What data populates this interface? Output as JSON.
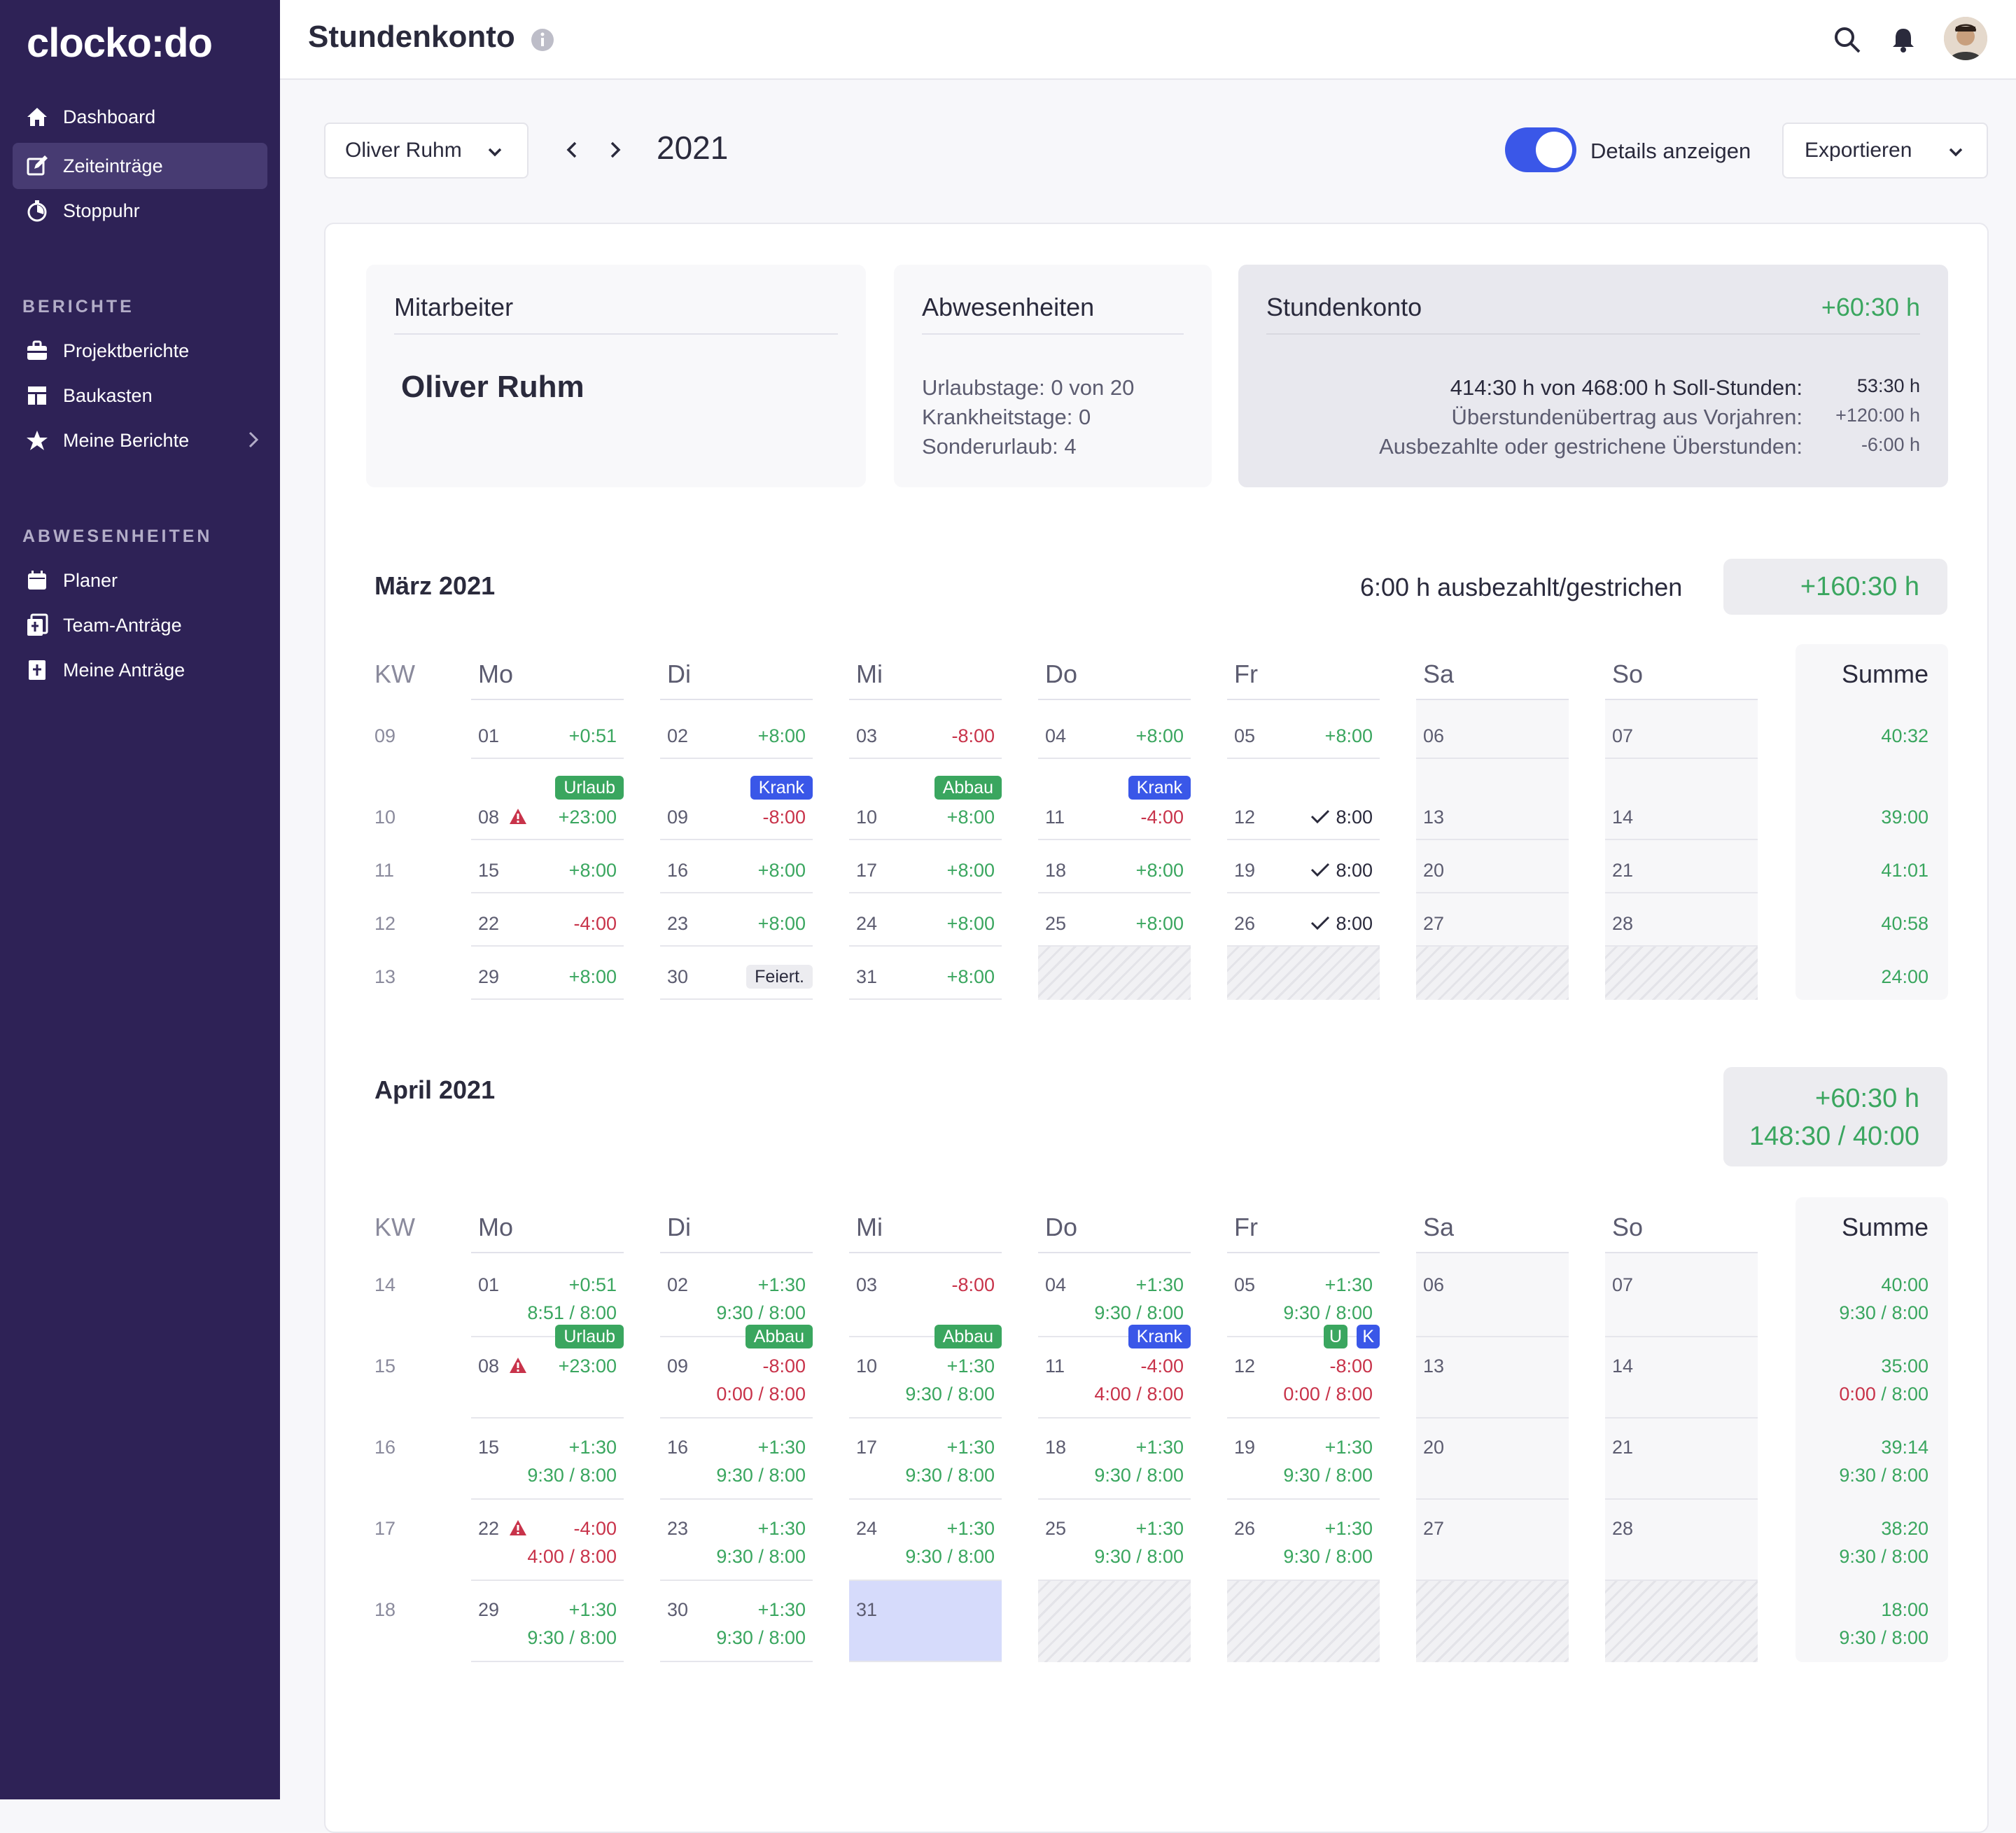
{
  "app": {
    "logo": "clocko:do"
  },
  "sidebar": {
    "items": [
      {
        "label": "Dashboard",
        "icon": "home-icon"
      },
      {
        "label": "Zeiteinträge",
        "icon": "edit-icon",
        "active": true
      },
      {
        "label": "Stoppuhr",
        "icon": "stopwatch-icon"
      }
    ],
    "reports_label": "BERICHTE",
    "reports": [
      {
        "label": "Projektberichte",
        "icon": "briefcase-icon"
      },
      {
        "label": "Baukasten",
        "icon": "layout-icon"
      },
      {
        "label": "Meine Berichte",
        "icon": "star-icon"
      }
    ],
    "absences_label": "ABWESENHEITEN",
    "absences": [
      {
        "label": "Planer",
        "icon": "calendar-icon"
      },
      {
        "label": "Team-Anträge",
        "icon": "team-request-icon"
      },
      {
        "label": "Meine Anträge",
        "icon": "my-request-icon"
      }
    ]
  },
  "header": {
    "title": "Stundenkonto"
  },
  "toolbar": {
    "user": "Oliver Ruhm",
    "year": "2021",
    "toggle_label": "Details anzeigen",
    "toggle_on": true,
    "export_label": "Exportieren"
  },
  "summary": {
    "employee": {
      "title": "Mitarbeiter",
      "name": "Oliver Ruhm"
    },
    "absences": {
      "title": "Abwesenheiten",
      "lines": [
        "Urlaubstage: 0 von 20",
        "Krankheitstage: 0",
        "Sonderurlaub: 4"
      ]
    },
    "account": {
      "title": "Stundenkonto",
      "total": "+60:30 h",
      "rows": [
        {
          "label": "414:30 h von 468:00 h Soll-Stunden:",
          "value": "53:30 h"
        },
        {
          "label": "Überstundenübertrag aus Vorjahren:",
          "value": "+120:00 h"
        },
        {
          "label": "Ausbezahlte oder gestrichene Überstunden:",
          "value": "-6:00 h"
        }
      ]
    }
  },
  "columns": [
    "KW",
    "Mo",
    "Di",
    "Mi",
    "Do",
    "Fr",
    "Sa",
    "So",
    "Summe"
  ],
  "march": {
    "title": "März 2021",
    "info": "6:00 h ausbezahlt/gestrichen",
    "total": "+160:30 h",
    "weeks": [
      {
        "kw": "09",
        "days": [
          {
            "d": "01",
            "v": "+0:51",
            "c": "green"
          },
          {
            "d": "02",
            "v": "+8:00",
            "c": "green"
          },
          {
            "d": "03",
            "v": "-8:00",
            "c": "red"
          },
          {
            "d": "04",
            "v": "+8:00",
            "c": "green"
          },
          {
            "d": "05",
            "v": "+8:00",
            "c": "green"
          },
          {
            "d": "06"
          },
          {
            "d": "07"
          }
        ],
        "sum": "40:32"
      },
      {
        "kw": "10",
        "days": [
          {
            "d": "08",
            "v": "+23:00",
            "c": "green",
            "badge": "Urlaub",
            "bc": "green",
            "warn": true
          },
          {
            "d": "09",
            "v": "-8:00",
            "c": "red",
            "badge": "Krank",
            "bc": "blue"
          },
          {
            "d": "10",
            "v": "+8:00",
            "c": "green",
            "badge": "Abbau",
            "bc": "green"
          },
          {
            "d": "11",
            "v": "-4:00",
            "c": "red",
            "badge": "Krank",
            "bc": "blue"
          },
          {
            "d": "12",
            "v": "8:00",
            "c": "dark",
            "check": true
          },
          {
            "d": "13"
          },
          {
            "d": "14"
          }
        ],
        "sum": "39:00"
      },
      {
        "kw": "11",
        "days": [
          {
            "d": "15",
            "v": "+8:00",
            "c": "green"
          },
          {
            "d": "16",
            "v": "+8:00",
            "c": "green"
          },
          {
            "d": "17",
            "v": "+8:00",
            "c": "green"
          },
          {
            "d": "18",
            "v": "+8:00",
            "c": "green"
          },
          {
            "d": "19",
            "v": "8:00",
            "c": "dark",
            "check": true
          },
          {
            "d": "20"
          },
          {
            "d": "21"
          }
        ],
        "sum": "41:01"
      },
      {
        "kw": "12",
        "days": [
          {
            "d": "22",
            "v": "-4:00",
            "c": "red"
          },
          {
            "d": "23",
            "v": "+8:00",
            "c": "green"
          },
          {
            "d": "24",
            "v": "+8:00",
            "c": "green"
          },
          {
            "d": "25",
            "v": "+8:00",
            "c": "green"
          },
          {
            "d": "26",
            "v": "8:00",
            "c": "dark",
            "check": true
          },
          {
            "d": "27"
          },
          {
            "d": "28"
          }
        ],
        "sum": "40:58"
      },
      {
        "kw": "13",
        "days": [
          {
            "d": "29",
            "v": "+8:00",
            "c": "green"
          },
          {
            "d": "30",
            "badge": "Feiert.",
            "bc": "gray"
          },
          {
            "d": "31",
            "v": "+8:00",
            "c": "green"
          },
          {
            "empty": true
          },
          {
            "empty": true
          },
          {
            "empty": true
          },
          {
            "empty": true
          }
        ],
        "sum": "24:00"
      }
    ]
  },
  "april": {
    "title": "April 2021",
    "total": "+60:30 h",
    "total2": "148:30 / 40:00",
    "weeks": [
      {
        "kw": "14",
        "days": [
          {
            "d": "01",
            "v": "+0:51",
            "c": "green",
            "w": "8:51",
            "wc": "green"
          },
          {
            "d": "02",
            "v": "+1:30",
            "c": "green",
            "w": "9:30",
            "wc": "green"
          },
          {
            "d": "03",
            "v": "-8:00",
            "c": "red"
          },
          {
            "d": "04",
            "v": "+1:30",
            "c": "green",
            "w": "9:30",
            "wc": "green"
          },
          {
            "d": "05",
            "v": "+1:30",
            "c": "green",
            "w": "9:30",
            "wc": "green"
          },
          {
            "d": "06"
          },
          {
            "d": "07"
          }
        ],
        "sum": "40:00",
        "sumw": "9:30",
        "sumwc": "green"
      },
      {
        "kw": "15",
        "days": [
          {
            "d": "08",
            "v": "+23:00",
            "c": "green",
            "badge": "Urlaub",
            "bc": "green",
            "warn": true
          },
          {
            "d": "09",
            "v": "-8:00",
            "c": "red",
            "w": "0:00",
            "wc": "red",
            "badge": "Abbau",
            "bc": "green"
          },
          {
            "d": "10",
            "v": "+1:30",
            "c": "green",
            "w": "9:30",
            "wc": "green",
            "badge": "Abbau",
            "bc": "green"
          },
          {
            "d": "11",
            "v": "-4:00",
            "c": "red",
            "w": "4:00",
            "wc": "red",
            "badge": "Krank",
            "bc": "blue"
          },
          {
            "d": "12",
            "v": "-8:00",
            "c": "red",
            "w": "0:00",
            "wc": "red",
            "badges": [
              "U",
              "K"
            ]
          },
          {
            "d": "13"
          },
          {
            "d": "14"
          }
        ],
        "sum": "35:00",
        "sumw": "0:00",
        "sumwc": "red"
      },
      {
        "kw": "16",
        "days": [
          {
            "d": "15",
            "v": "+1:30",
            "c": "green",
            "w": "9:30",
            "wc": "green"
          },
          {
            "d": "16",
            "v": "+1:30",
            "c": "green",
            "w": "9:30",
            "wc": "green"
          },
          {
            "d": "17",
            "v": "+1:30",
            "c": "green",
            "w": "9:30",
            "wc": "green"
          },
          {
            "d": "18",
            "v": "+1:30",
            "c": "green",
            "w": "9:30",
            "wc": "green"
          },
          {
            "d": "19",
            "v": "+1:30",
            "c": "green",
            "w": "9:30",
            "wc": "green"
          },
          {
            "d": "20"
          },
          {
            "d": "21"
          }
        ],
        "sum": "39:14",
        "sumw": "9:30",
        "sumwc": "green"
      },
      {
        "kw": "17",
        "days": [
          {
            "d": "22",
            "v": "-4:00",
            "c": "red",
            "w": "4:00",
            "wc": "red",
            "warn": true
          },
          {
            "d": "23",
            "v": "+1:30",
            "c": "green",
            "w": "9:30",
            "wc": "green"
          },
          {
            "d": "24",
            "v": "+1:30",
            "c": "green",
            "w": "9:30",
            "wc": "green"
          },
          {
            "d": "25",
            "v": "+1:30",
            "c": "green",
            "w": "9:30",
            "wc": "green"
          },
          {
            "d": "26",
            "v": "+1:30",
            "c": "green",
            "w": "9:30",
            "wc": "green"
          },
          {
            "d": "27"
          },
          {
            "d": "28"
          }
        ],
        "sum": "38:20",
        "sumw": "9:30",
        "sumwc": "green"
      },
      {
        "kw": "18",
        "days": [
          {
            "d": "29",
            "v": "+1:30",
            "c": "green",
            "w": "9:30",
            "wc": "green"
          },
          {
            "d": "30",
            "v": "+1:30",
            "c": "green",
            "w": "9:30",
            "wc": "green"
          },
          {
            "d": "31",
            "highlight": true
          },
          {
            "empty": true
          },
          {
            "empty": true
          },
          {
            "empty": true
          },
          {
            "empty": true
          }
        ],
        "sum": "18:00",
        "sumw": "9:30",
        "sumwc": "green"
      }
    ]
  },
  "target_hours": "8:00"
}
